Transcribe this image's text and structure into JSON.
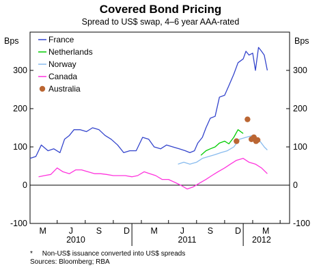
{
  "chart_data": {
    "type": "line",
    "title": "Covered Bond Pricing",
    "subtitle": "Spread to US$ swap, 4–6 year AAA-rated",
    "ylabel_left": "Bps",
    "ylabel_right": "Bps",
    "ylim": [
      -100,
      400
    ],
    "yticks": [
      "-100",
      "0",
      "100",
      "200",
      "300"
    ],
    "x_month_labels": [
      "M",
      "J",
      "S",
      "D",
      "M",
      "J",
      "S",
      "D",
      "M"
    ],
    "x_year_labels": [
      "2010",
      "2011",
      "2012"
    ],
    "xlim": [
      "2010-02-01",
      "2012-06-01"
    ],
    "grid": false,
    "legend_position": "top-left",
    "series": [
      {
        "name": "France",
        "color": "#3344cc",
        "x": [
          "2010-02-01",
          "2010-02-20",
          "2010-03-10",
          "2010-04-01",
          "2010-04-20",
          "2010-05-10",
          "2010-05-25",
          "2010-06-10",
          "2010-06-25",
          "2010-07-15",
          "2010-08-05",
          "2010-08-25",
          "2010-09-15",
          "2010-10-05",
          "2010-10-25",
          "2010-11-15",
          "2010-12-05",
          "2010-12-25",
          "2011-01-15",
          "2011-02-05",
          "2011-02-25",
          "2011-03-15",
          "2011-04-05",
          "2011-04-25",
          "2011-05-15",
          "2011-06-05",
          "2011-06-25",
          "2011-07-10",
          "2011-07-25",
          "2011-08-05",
          "2011-08-20",
          "2011-09-01",
          "2011-09-15",
          "2011-10-01",
          "2011-10-15",
          "2011-11-01",
          "2011-11-15",
          "2011-12-01",
          "2011-12-15",
          "2012-01-01",
          "2012-01-10",
          "2012-01-20",
          "2012-02-01",
          "2012-02-10",
          "2012-02-20",
          "2012-03-01",
          "2012-03-10",
          "2012-03-20"
        ],
        "values": [
          70,
          75,
          105,
          90,
          95,
          85,
          120,
          130,
          145,
          145,
          140,
          150,
          145,
          130,
          120,
          105,
          85,
          90,
          90,
          125,
          120,
          100,
          95,
          105,
          100,
          95,
          90,
          85,
          90,
          110,
          125,
          150,
          175,
          180,
          230,
          235,
          260,
          290,
          320,
          330,
          350,
          340,
          345,
          300,
          360,
          350,
          340,
          300
        ]
      },
      {
        "name": "Netherlands",
        "color": "#00cc00",
        "x": [
          "2011-08-15",
          "2011-09-01",
          "2011-09-15",
          "2011-10-01",
          "2011-10-15",
          "2011-11-01",
          "2011-11-15",
          "2011-12-01",
          "2011-12-15",
          "2012-01-01"
        ],
        "values": [
          78,
          90,
          95,
          100,
          110,
          115,
          108,
          125,
          145,
          135
        ]
      },
      {
        "name": "Norway",
        "color": "#88bbee",
        "x": [
          "2011-06-01",
          "2011-06-20",
          "2011-07-10",
          "2011-08-01",
          "2011-08-20",
          "2011-09-10",
          "2011-10-01",
          "2011-10-20",
          "2011-11-10",
          "2011-12-01",
          "2011-12-20",
          "2012-01-10",
          "2012-02-01",
          "2012-02-20",
          "2012-03-10",
          "2012-03-20"
        ],
        "values": [
          55,
          60,
          55,
          60,
          70,
          75,
          80,
          85,
          90,
          100,
          120,
          125,
          130,
          120,
          100,
          92
        ]
      },
      {
        "name": "Canada",
        "color": "#ff33dd",
        "x": [
          "2010-03-01",
          "2010-03-20",
          "2010-04-10",
          "2010-05-01",
          "2010-05-20",
          "2010-06-10",
          "2010-07-01",
          "2010-07-20",
          "2010-08-10",
          "2010-09-01",
          "2010-09-20",
          "2010-10-10",
          "2010-11-01",
          "2010-11-20",
          "2010-12-10",
          "2011-01-01",
          "2011-01-20",
          "2011-02-10",
          "2011-03-01",
          "2011-03-20",
          "2011-04-10",
          "2011-05-01",
          "2011-05-20",
          "2011-06-10",
          "2011-07-01",
          "2011-07-20",
          "2011-08-10",
          "2011-09-01",
          "2011-09-20",
          "2011-10-10",
          "2011-11-01",
          "2011-11-20",
          "2011-12-10",
          "2012-01-01",
          "2012-01-20",
          "2012-02-10",
          "2012-03-01",
          "2012-03-20"
        ],
        "values": [
          22,
          25,
          28,
          45,
          35,
          30,
          40,
          40,
          35,
          30,
          30,
          28,
          25,
          25,
          25,
          22,
          25,
          35,
          30,
          25,
          15,
          15,
          8,
          0,
          -10,
          -5,
          5,
          15,
          25,
          35,
          45,
          55,
          65,
          70,
          60,
          55,
          45,
          30
        ]
      },
      {
        "name": "Australia",
        "color": "#bb6633",
        "type": "scatter",
        "x": [
          "2011-12-10",
          "2012-01-15",
          "2012-01-28",
          "2012-02-05",
          "2012-02-12",
          "2012-02-17"
        ],
        "values": [
          115,
          172,
          120,
          125,
          115,
          118
        ]
      }
    ]
  },
  "footnote": "*     Non-US$ issuance converted into US$ spreads",
  "sources": "Sources: Bloomberg; RBA"
}
